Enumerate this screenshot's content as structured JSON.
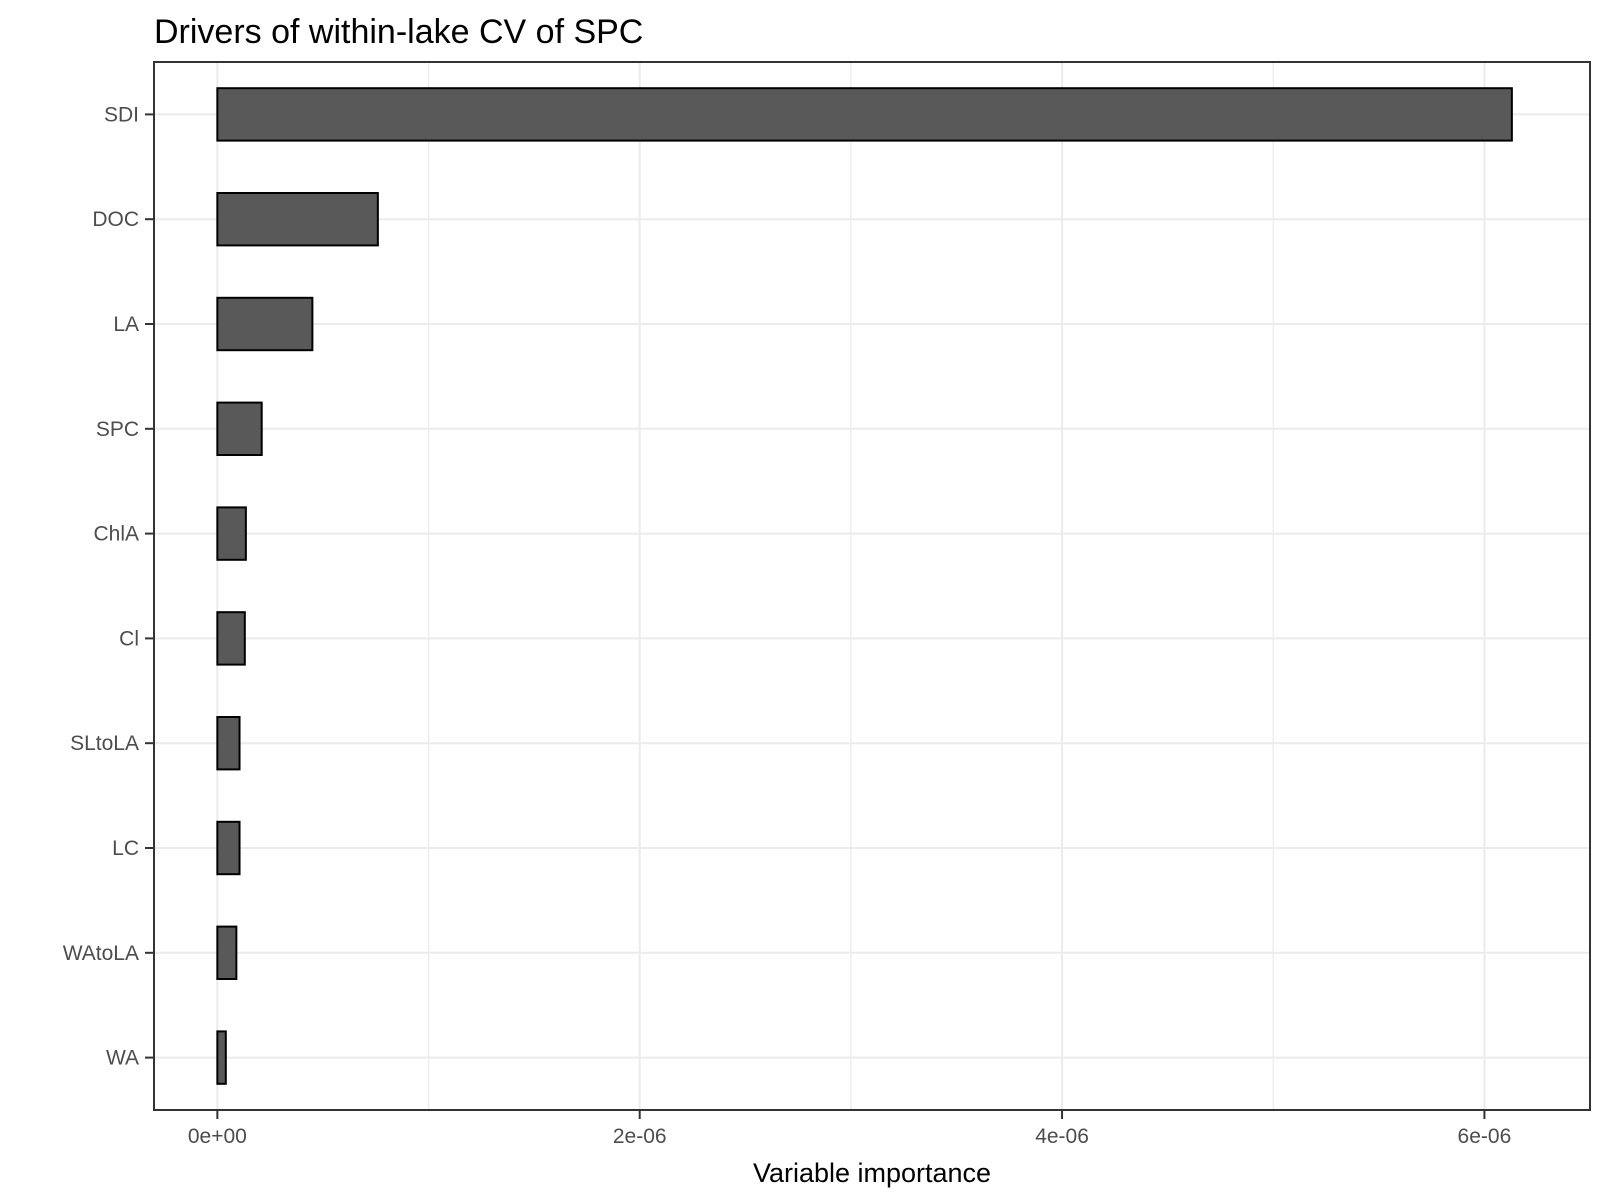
{
  "chart_data": {
    "type": "bar",
    "orientation": "horizontal",
    "title": "Drivers of within-lake CV of SPC",
    "xlabel": "Variable importance",
    "ylabel": "",
    "categories": [
      "SDI",
      "DOC",
      "LA",
      "SPC",
      "ChlA",
      "Cl",
      "SLtoLA",
      "LC",
      "WAtoLA",
      "WA"
    ],
    "values": [
      6.13e-06,
      7.6e-07,
      4.5e-07,
      2.1e-07,
      1.35e-07,
      1.3e-07,
      1.05e-07,
      1.05e-07,
      9e-08,
      4e-08
    ],
    "xlim": [
      -3e-07,
      6.5e-06
    ],
    "x_major_ticks": [
      0,
      2e-06,
      4e-06,
      6e-06
    ],
    "x_tick_labels": [
      "0e+00",
      "2e-06",
      "4e-06",
      "6e-06"
    ],
    "x_minor_ticks": [
      1e-06,
      3e-06,
      5e-06
    ],
    "grid": true,
    "legend": "none",
    "colors": {
      "bar_fill": "#595959",
      "bar_stroke": "#000000",
      "grid": "#ebebeb",
      "panel_border": "#333333"
    }
  }
}
